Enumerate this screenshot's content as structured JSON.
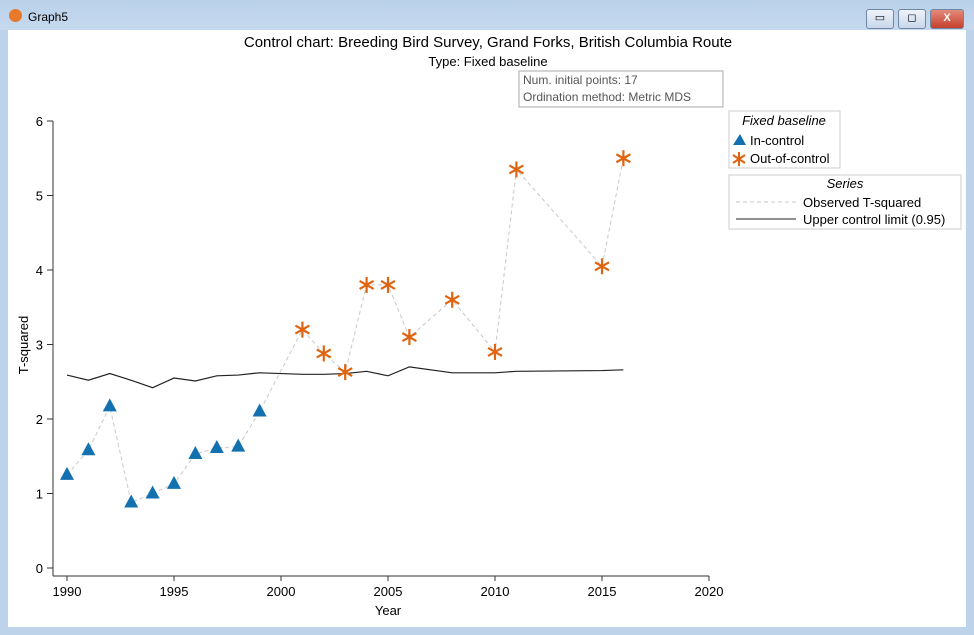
{
  "window": {
    "title": "Graph5",
    "minimize": "▭",
    "restore": "◻",
    "close": "X"
  },
  "chart_data": {
    "type": "scatter",
    "title": "Control chart: Breeding Bird Survey, Grand Forks, British Columbia Route",
    "subtitle": "Type: Fixed baseline",
    "info": [
      "Num. initial points: 17",
      "Ordination method: Metric MDS"
    ],
    "xlabel": "Year",
    "ylabel": "T-squared",
    "xlim": [
      1990,
      2020
    ],
    "ylim": [
      0,
      6
    ],
    "xticks": [
      1990,
      1995,
      2000,
      2005,
      2010,
      2015,
      2020
    ],
    "yticks": [
      0,
      1,
      2,
      3,
      4,
      5,
      6
    ],
    "legend1": {
      "title": "Fixed baseline",
      "entries": [
        "In-control",
        "Out-of-control"
      ]
    },
    "legend2": {
      "title": "Series",
      "entries": [
        "Observed T-squared",
        "Upper control limit (0.95)"
      ]
    },
    "colors": {
      "in": "#1471b0",
      "out": "#e0640f",
      "observed": "#c8c8c8",
      "ucl": "#222222"
    },
    "observed": [
      {
        "x": 1990,
        "y": 1.25,
        "s": "in"
      },
      {
        "x": 1991,
        "y": 1.58,
        "s": "in"
      },
      {
        "x": 1992,
        "y": 2.17,
        "s": "in"
      },
      {
        "x": 1993,
        "y": 0.88,
        "s": "in"
      },
      {
        "x": 1994,
        "y": 1.0,
        "s": "in"
      },
      {
        "x": 1995,
        "y": 1.13,
        "s": "in"
      },
      {
        "x": 1996,
        "y": 1.53,
        "s": "in"
      },
      {
        "x": 1997,
        "y": 1.61,
        "s": "in"
      },
      {
        "x": 1998,
        "y": 1.63,
        "s": "in"
      },
      {
        "x": 1999,
        "y": 2.1,
        "s": "in"
      },
      {
        "x": 2001,
        "y": 3.2,
        "s": "out"
      },
      {
        "x": 2002,
        "y": 2.88,
        "s": "out"
      },
      {
        "x": 2003,
        "y": 2.63,
        "s": "out"
      },
      {
        "x": 2004,
        "y": 3.8,
        "s": "out"
      },
      {
        "x": 2005,
        "y": 3.8,
        "s": "out"
      },
      {
        "x": 2006,
        "y": 3.1,
        "s": "out"
      },
      {
        "x": 2008,
        "y": 3.6,
        "s": "out"
      },
      {
        "x": 2010,
        "y": 2.9,
        "s": "out"
      },
      {
        "x": 2011,
        "y": 5.35,
        "s": "out"
      },
      {
        "x": 2015,
        "y": 4.05,
        "s": "out"
      },
      {
        "x": 2016,
        "y": 5.5,
        "s": "out"
      }
    ],
    "ucl": [
      [
        1990,
        2.59
      ],
      [
        1991,
        2.52
      ],
      [
        1992,
        2.61
      ],
      [
        1993,
        2.52
      ],
      [
        1994,
        2.42
      ],
      [
        1995,
        2.55
      ],
      [
        1996,
        2.51
      ],
      [
        1997,
        2.58
      ],
      [
        1998,
        2.59
      ],
      [
        1999,
        2.62
      ],
      [
        2001,
        2.6
      ],
      [
        2002,
        2.6
      ],
      [
        2003,
        2.61
      ],
      [
        2004,
        2.64
      ],
      [
        2005,
        2.58
      ],
      [
        2006,
        2.7
      ],
      [
        2008,
        2.62
      ],
      [
        2010,
        2.62
      ],
      [
        2011,
        2.64
      ],
      [
        2015,
        2.65
      ],
      [
        2016,
        2.66
      ]
    ]
  }
}
